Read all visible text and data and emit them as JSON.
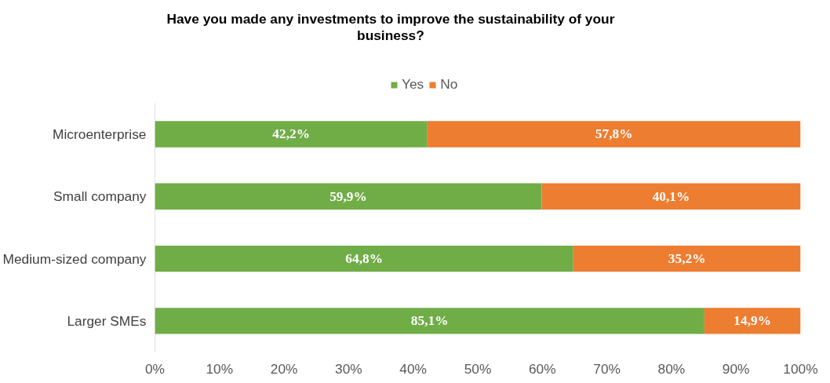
{
  "chart_data": {
    "type": "bar",
    "orientation": "horizontal",
    "stacked": true,
    "title": "Have you made any investments to improve the sustainability of your business?",
    "categories": [
      "Microenterprise",
      "Small company",
      "Medium-sized company",
      "Larger SMEs"
    ],
    "series": [
      {
        "name": "Yes",
        "color": "#70ad47",
        "values": [
          42.2,
          59.9,
          64.8,
          85.1
        ],
        "value_labels": [
          "42,2%",
          "59,9%",
          "64,8%",
          "85,1%"
        ]
      },
      {
        "name": "No",
        "color": "#ed7d31",
        "values": [
          57.8,
          40.1,
          35.2,
          14.9
        ],
        "value_labels": [
          "57,8%",
          "40,1%",
          "35,2%",
          "14,9%"
        ]
      }
    ],
    "xlim": [
      0,
      100
    ],
    "xticks": [
      {
        "value": 0,
        "label": "0%"
      },
      {
        "value": 10,
        "label": "10%"
      },
      {
        "value": 20,
        "label": "20%"
      },
      {
        "value": 30,
        "label": "30%"
      },
      {
        "value": 40,
        "label": "40%"
      },
      {
        "value": 50,
        "label": "50%"
      },
      {
        "value": 60,
        "label": "60%"
      },
      {
        "value": 70,
        "label": "70%"
      },
      {
        "value": 80,
        "label": "80%"
      },
      {
        "value": 90,
        "label": "90%"
      },
      {
        "value": 100,
        "label": "100%"
      }
    ],
    "grid": false,
    "legend": "top"
  }
}
